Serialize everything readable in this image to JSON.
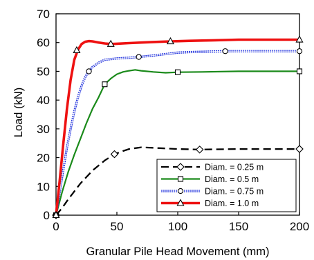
{
  "chart_data": {
    "type": "line",
    "title": "",
    "xlabel": "Granular Pile Head Movement  (mm)",
    "ylabel": "Load (kN)",
    "xlim": [
      0,
      200
    ],
    "ylim": [
      0,
      70
    ],
    "xticks": [
      "0",
      "50",
      "100",
      "150",
      "200"
    ],
    "yticks": [
      "0",
      "10",
      "20",
      "30",
      "40",
      "50",
      "60",
      "70"
    ],
    "grid": false,
    "legend_position": "bottom-right",
    "series": [
      {
        "name": "Diam. = 0.25 m",
        "color": "#000000",
        "line_style": "dashed",
        "marker": "diamond",
        "x": [
          0,
          5,
          10,
          20,
          30,
          40,
          48,
          55,
          60,
          70,
          80,
          90,
          100,
          110,
          118,
          130,
          150,
          175,
          200
        ],
        "y": [
          0,
          2.5,
          5.5,
          11,
          15.5,
          19,
          21.2,
          22.3,
          23,
          23.6,
          23.4,
          23.2,
          23,
          22.9,
          22.8,
          22.9,
          23,
          23,
          23
        ],
        "marker_points": [
          [
            0,
            0
          ],
          [
            48,
            21.2
          ],
          [
            118,
            22.8
          ],
          [
            200,
            23
          ]
        ]
      },
      {
        "name": "Diam. = 0.5 m",
        "color": "#1a8a1a",
        "line_style": "solid",
        "marker": "square",
        "x": [
          0,
          5,
          10,
          15,
          20,
          25,
          30,
          35,
          40,
          45,
          50,
          55,
          60,
          65,
          70,
          80,
          90,
          100,
          120,
          150,
          200
        ],
        "y": [
          0,
          8,
          15,
          21,
          26.5,
          32,
          37,
          41,
          45.5,
          47.5,
          49,
          49.8,
          50.2,
          50.5,
          50.2,
          49.8,
          49.5,
          49.7,
          49.8,
          50,
          50
        ],
        "marker_points": [
          [
            0,
            0
          ],
          [
            40,
            45.5
          ],
          [
            100,
            49.7
          ],
          [
            200,
            50
          ]
        ]
      },
      {
        "name": "Diam. = 0.75 m",
        "color": "#2233dd",
        "line_style": "double",
        "marker": "circle",
        "x": [
          0,
          3,
          6,
          9,
          12,
          15,
          18,
          21,
          24,
          27,
          30,
          35,
          40,
          50,
          60,
          68,
          80,
          90,
          100,
          110,
          120,
          139,
          160,
          180,
          200
        ],
        "y": [
          0,
          8,
          16,
          23.5,
          30,
          36,
          41,
          45,
          48,
          50,
          51.5,
          53,
          54,
          54.5,
          54.7,
          55,
          55.5,
          56,
          56.5,
          56.7,
          56.8,
          57,
          57,
          57,
          57
        ],
        "marker_points": [
          [
            0,
            0
          ],
          [
            27,
            50
          ],
          [
            68,
            55
          ],
          [
            139,
            57
          ],
          [
            200,
            57
          ]
        ]
      },
      {
        "name": "Diam. = 1.0 m",
        "color": "#ee1111",
        "line_style": "solid",
        "marker": "triangle",
        "x": [
          0,
          3,
          6,
          9,
          12,
          15,
          18,
          21,
          24,
          27,
          30,
          35,
          40,
          45,
          50,
          60,
          70,
          80,
          94,
          110,
          130,
          150,
          175,
          200
        ],
        "y": [
          0,
          12,
          25,
          37,
          47,
          54,
          57.5,
          59.5,
          60.3,
          60.5,
          60.4,
          60,
          59.7,
          59.5,
          59.6,
          59.8,
          60,
          60.2,
          60.4,
          60.6,
          60.8,
          61,
          61,
          61
        ],
        "marker_points": [
          [
            0,
            0
          ],
          [
            17,
            57.3
          ],
          [
            45,
            59.5
          ],
          [
            94,
            60.4
          ],
          [
            200,
            61
          ]
        ]
      }
    ]
  }
}
